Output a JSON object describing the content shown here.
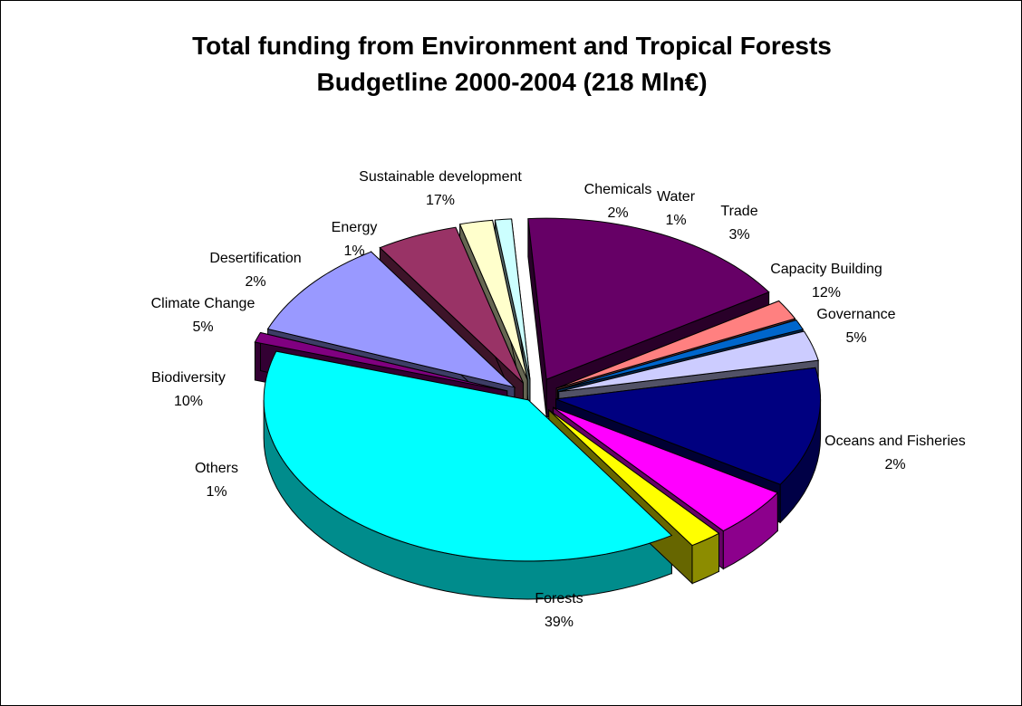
{
  "chart_data": {
    "type": "pie",
    "title": [
      "Total funding from Environment and Tropical Forests",
      "Budgetline 2000-2004 (218 Mln€)"
    ],
    "legend": "none",
    "slices": [
      {
        "name": "Sustainable development",
        "percent_label": "17%",
        "value": 17,
        "color": "#660066"
      },
      {
        "name": "Chemicals",
        "percent_label": "2%",
        "value": 2,
        "color": "#ff8080"
      },
      {
        "name": "Water",
        "percent_label": "1%",
        "value": 1,
        "color": "#0066cc"
      },
      {
        "name": "Trade",
        "percent_label": "3%",
        "value": 3,
        "color": "#ccccff"
      },
      {
        "name": "Capacity Building",
        "percent_label": "12%",
        "value": 12,
        "color": "#000080"
      },
      {
        "name": "Governance",
        "percent_label": "5%",
        "value": 5,
        "color": "#ff00ff"
      },
      {
        "name": "Oceans and Fisheries",
        "percent_label": "2%",
        "value": 2,
        "color": "#ffff00"
      },
      {
        "name": "Forests",
        "percent_label": "39%",
        "value": 39,
        "color": "#00ffff"
      },
      {
        "name": "Others",
        "percent_label": "1%",
        "value": 1,
        "color": "#800080"
      },
      {
        "name": "Biodiversity",
        "percent_label": "10%",
        "value": 10,
        "color": "#9999ff"
      },
      {
        "name": "Climate Change",
        "percent_label": "5%",
        "value": 5,
        "color": "#993366"
      },
      {
        "name": "Desertification",
        "percent_label": "2%",
        "value": 2,
        "color": "#ffffcc"
      },
      {
        "name": "Energy",
        "percent_label": "1%",
        "value": 1,
        "color": "#ccffff"
      }
    ]
  }
}
